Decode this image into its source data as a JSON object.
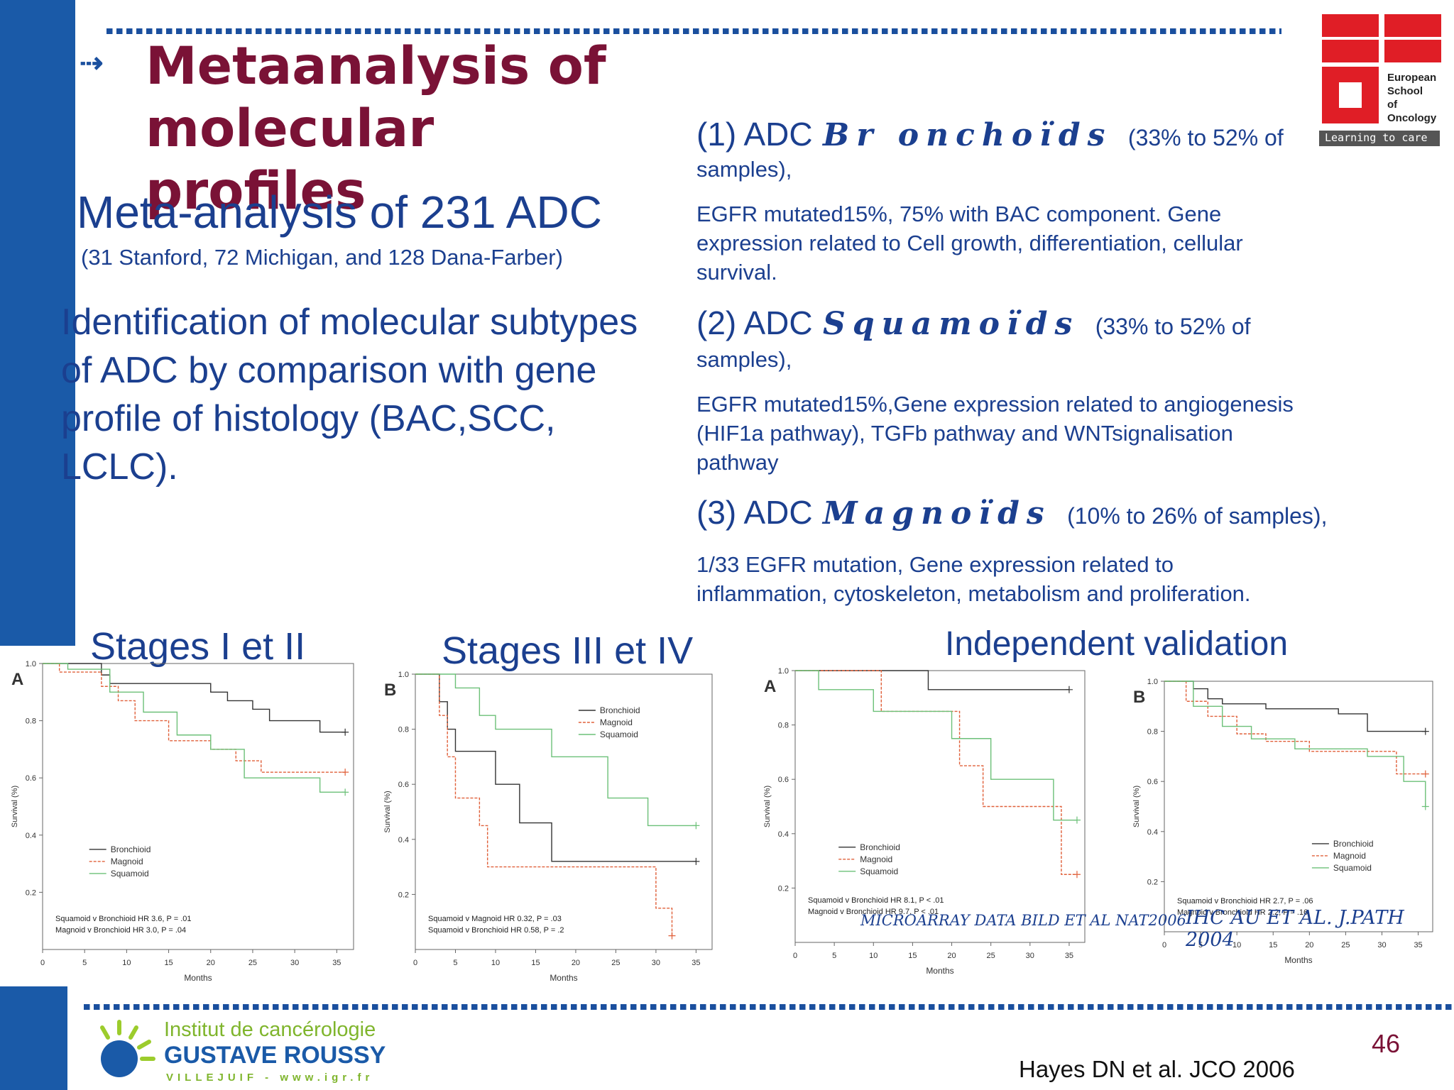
{
  "slide": {
    "title_line1": "Metaanalysis of molecular",
    "title_line2": "profiles",
    "meta_heading": "Meta-analysis of  231 ADC",
    "meta_sub": "(31 Stanford, 72 Michigan, and 128 Dana-Farber)",
    "identification": [
      "Identification of molecular subtypes",
      "of ADC by comparison with gene",
      "profile of histology (BAC,SCC,",
      "LCLC)."
    ],
    "page_number": "46",
    "citation": "Hayes DN et al. JCO 2006"
  },
  "subtypes": [
    {
      "prefix": "(1) ADC",
      "name": "Br onchoïds",
      "range": "(33% to 52% of",
      "range2": "samples),",
      "desc": [
        "EGFR mutated15%, 75% with BAC component.  Gene",
        "expression related to  Cell growth, differentiation, cellular",
        "survival."
      ]
    },
    {
      "prefix": "(2) ADC",
      "name": "Squamoïds",
      "range": "(33% to 52% of",
      "range2": "samples),",
      "desc": [
        "EGFR mutated15%,Gene expression related to angiogenesis",
        "(HIF1a pathway), TGFb pathway and  WNTsignalisation",
        "pathway"
      ]
    },
    {
      "prefix": "(3) ADC",
      "name": "Magnoïds",
      "range": "(10% to 26% of samples),",
      "range2": "",
      "desc": [
        "1/33 EGFR mutation, Gene expression related to",
        "inflammation, cytoskeleton,  metabolism and proliferation."
      ]
    }
  ],
  "captions": {
    "stages12": "Stages I et II",
    "stages34": "Stages III et IV",
    "validation": "Independent validation"
  },
  "logos": {
    "esso": {
      "line1": "European",
      "line2": "School",
      "line3": "of",
      "line4": "Oncology",
      "tagline": "Learning to care",
      "color": "#e01e26"
    },
    "igr": {
      "line1": "Institut de cancérologie",
      "line2": "GUSTAVE ROUSSY",
      "line3": "VILLEJUIF - www.igr.fr"
    }
  },
  "colors": {
    "bronchioid": "#333333",
    "magnoid": "#e0603a",
    "squamoid": "#6cc078"
  },
  "chart_data": [
    {
      "type": "line",
      "panel": "A",
      "xlabel": "Months",
      "ylabel": "Survival (%)",
      "xlim": [
        0,
        37
      ],
      "ylim": [
        0,
        1.0
      ],
      "xticks": [
        0,
        5,
        10,
        15,
        20,
        25,
        30,
        35
      ],
      "yticks": [
        0.2,
        0.4,
        0.6,
        0.8,
        1.0
      ],
      "legend": [
        "Bronchioid",
        "Magnoid",
        "Squamoid"
      ],
      "annotations": [
        "Squamoid v Bronchioid HR 3.6, P = .01",
        "Magnoid v Bronchioid HR 3.0, P = .04"
      ],
      "series": [
        {
          "name": "Bronchioid",
          "x": [
            0,
            7,
            8,
            13,
            20,
            22,
            25,
            27,
            33,
            36
          ],
          "y": [
            1.0,
            0.96,
            0.93,
            0.93,
            0.9,
            0.87,
            0.84,
            0.8,
            0.76,
            0.76
          ]
        },
        {
          "name": "Magnoid",
          "x": [
            0,
            2,
            7,
            9,
            11,
            15,
            20,
            23,
            26,
            33,
            36
          ],
          "y": [
            1.0,
            0.97,
            0.92,
            0.87,
            0.8,
            0.73,
            0.7,
            0.66,
            0.62,
            0.62,
            0.62
          ]
        },
        {
          "name": "Squamoid",
          "x": [
            0,
            3,
            8,
            12,
            16,
            20,
            24,
            33,
            36
          ],
          "y": [
            1.0,
            0.98,
            0.9,
            0.83,
            0.75,
            0.7,
            0.6,
            0.55,
            0.55
          ]
        }
      ]
    },
    {
      "type": "line",
      "panel": "B",
      "xlabel": "Months",
      "ylabel": "Survival (%)",
      "xlim": [
        0,
        37
      ],
      "ylim": [
        0,
        1.0
      ],
      "xticks": [
        0,
        5,
        10,
        15,
        20,
        25,
        30,
        35
      ],
      "yticks": [
        0.2,
        0.4,
        0.6,
        0.8,
        1.0
      ],
      "legend": [
        "Bronchioid",
        "Magnoid",
        "Squamoid"
      ],
      "annotations": [
        "Squamoid v Magnoid HR 0.32, P = .03",
        "Squamoid v Bronchioid HR 0.58, P = .2"
      ],
      "series": [
        {
          "name": "Bronchioid",
          "x": [
            0,
            3,
            4,
            5,
            6,
            10,
            13,
            17,
            35
          ],
          "y": [
            1.0,
            0.9,
            0.8,
            0.72,
            0.72,
            0.6,
            0.46,
            0.32,
            0.32
          ]
        },
        {
          "name": "Magnoid",
          "x": [
            0,
            3,
            4,
            5,
            8,
            9,
            30,
            32
          ],
          "y": [
            1.0,
            0.85,
            0.7,
            0.55,
            0.45,
            0.3,
            0.15,
            0.05
          ]
        },
        {
          "name": "Squamoid",
          "x": [
            0,
            5,
            8,
            10,
            17,
            24,
            29,
            35
          ],
          "y": [
            1.0,
            0.95,
            0.85,
            0.8,
            0.7,
            0.55,
            0.45,
            0.45
          ]
        }
      ]
    },
    {
      "type": "line",
      "panel": "A",
      "xlabel": "Months",
      "ylabel": "Survival (%)",
      "xlim": [
        0,
        37
      ],
      "ylim": [
        0,
        1.0
      ],
      "xticks": [
        0,
        5,
        10,
        15,
        20,
        25,
        30,
        35
      ],
      "yticks": [
        0.2,
        0.4,
        0.6,
        0.8,
        1.0
      ],
      "legend": [
        "Bronchioid",
        "Magnoid",
        "Squamoid"
      ],
      "annotations": [
        "Squamoid v Bronchioid HR 8.1, P < .01",
        "Magnoid v Bronchioid HR 9.7, P < .01"
      ],
      "series": [
        {
          "name": "Bronchioid",
          "x": [
            0,
            17,
            35
          ],
          "y": [
            1.0,
            0.93,
            0.93
          ]
        },
        {
          "name": "Magnoid",
          "x": [
            0,
            11,
            21,
            24,
            34,
            36
          ],
          "y": [
            1.0,
            0.85,
            0.65,
            0.5,
            0.25,
            0.25
          ]
        },
        {
          "name": "Squamoid",
          "x": [
            0,
            3,
            10,
            20,
            25,
            33,
            36
          ],
          "y": [
            1.0,
            0.93,
            0.85,
            0.75,
            0.6,
            0.45,
            0.45
          ]
        }
      ]
    },
    {
      "type": "line",
      "panel": "B",
      "xlabel": "Months",
      "ylabel": "Survival (%)",
      "xlim": [
        0,
        37
      ],
      "ylim": [
        0,
        1.0
      ],
      "xticks": [
        0,
        5,
        10,
        15,
        20,
        25,
        30,
        35
      ],
      "yticks": [
        0.2,
        0.4,
        0.6,
        0.8,
        1.0
      ],
      "legend": [
        "Bronchioid",
        "Magnoid",
        "Squamoid"
      ],
      "annotations": [
        "Squamoid v Bronchioid HR 2.7, P = .06",
        "Magnoid v Bronchioid HR 2.2, P = .16"
      ],
      "series": [
        {
          "name": "Bronchioid",
          "x": [
            0,
            4,
            6,
            8,
            14,
            24,
            28,
            36
          ],
          "y": [
            1.0,
            0.97,
            0.93,
            0.91,
            0.89,
            0.87,
            0.8,
            0.8
          ]
        },
        {
          "name": "Magnoid",
          "x": [
            0,
            3,
            6,
            10,
            14,
            20,
            32,
            36
          ],
          "y": [
            1.0,
            0.92,
            0.86,
            0.79,
            0.76,
            0.72,
            0.63,
            0.63
          ]
        },
        {
          "name": "Squamoid",
          "x": [
            0,
            4,
            8,
            12,
            18,
            28,
            33,
            36
          ],
          "y": [
            1.0,
            0.9,
            0.82,
            0.77,
            0.73,
            0.7,
            0.6,
            0.5
          ]
        }
      ]
    }
  ],
  "chart_sources": [
    "MICROARRAY DATA BILD ET AL NAT2006",
    "IHC  AU ET AL. J.PATH 2004"
  ]
}
